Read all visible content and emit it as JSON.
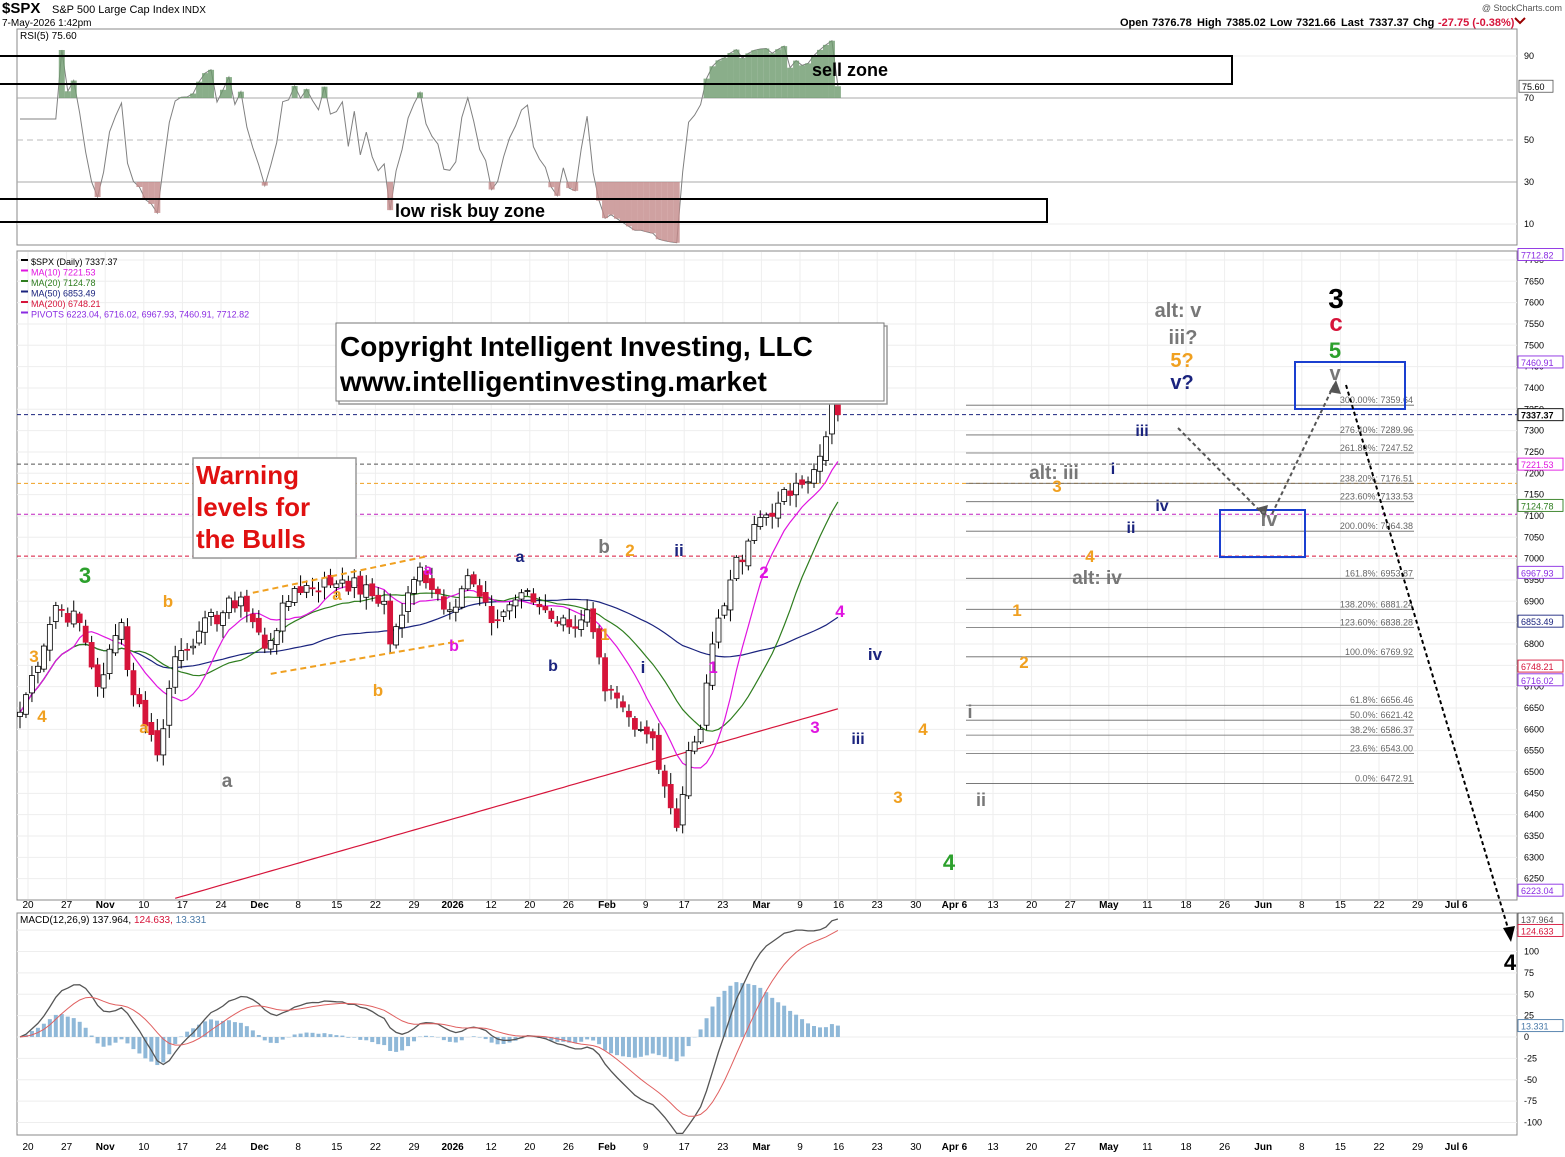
{
  "header": {
    "symbol": "$SPX",
    "name": "S&P 500 Large Cap Index",
    "exchange": "INDX",
    "date_time": "7-May-2026 1:42pm",
    "watermark": "@ StockCharts.com",
    "ohlc": {
      "open_label": "Open",
      "open": "7376.78",
      "high_label": "High",
      "high": "7385.02",
      "low_label": "Low",
      "low": "7321.66",
      "last_label": "Last",
      "last": "7337.37",
      "chg_label": "Chg",
      "chg": "-27.75 (-0.38%)"
    }
  },
  "colors": {
    "up": "#ffffff",
    "down": "#d6143a",
    "ma10": "#e014e0",
    "ma20": "#2e7d1e",
    "ma50": "#1a237e",
    "ma200": "#d6143a",
    "rsi": "#808080",
    "macd_line": "#555555",
    "macd_signal": "#e06060",
    "histogram": "#8fb8d8",
    "fill_green": "#6e9a6e",
    "fill_red": "#c48a8a"
  },
  "rsi_panel": {
    "legend": "RSI(5) 75.60",
    "current": "75.60",
    "axis_ticks": [
      "90",
      "70",
      "50",
      "30",
      "10"
    ],
    "sell_zone_label": "sell zone",
    "buy_zone_label": "low risk buy zone"
  },
  "price_panel": {
    "legend": [
      {
        "text": "$SPX (Daily) 7337.37",
        "color": "#000000"
      },
      {
        "text": "MA(10) 7221.53",
        "color": "#e014e0"
      },
      {
        "text": "MA(20) 7124.78",
        "color": "#2e7d1e"
      },
      {
        "text": "MA(50) 6853.49",
        "color": "#1a237e"
      },
      {
        "text": "MA(200) 6748.21",
        "color": "#d6143a"
      },
      {
        "text": "PIVOTS 6223.04, 6716.02, 6967.93, 7460.91, 7712.82",
        "color": "#8a2be2"
      }
    ],
    "copyright_line1": "Copyright Intelligent Investing, LLC",
    "copyright_line2": "www.intelligentinvesting.market",
    "warning_text": [
      "Warning",
      "levels for",
      "the Bulls"
    ],
    "axis_ticks": [
      "7700",
      "7650",
      "7600",
      "7550",
      "7500",
      "7450",
      "7400",
      "7350",
      "7300",
      "7250",
      "7200",
      "7150",
      "7100",
      "7050",
      "7000",
      "6950",
      "6900",
      "6850",
      "6800",
      "6750",
      "6700",
      "6650",
      "6600",
      "6550",
      "6500",
      "6450",
      "6400",
      "6350",
      "6300",
      "6250"
    ],
    "axis_badges": [
      {
        "text": "7712.82",
        "value": 7712.82,
        "color": "#8a2be2"
      },
      {
        "text": "7460.91",
        "value": 7460.91,
        "color": "#8a2be2"
      },
      {
        "text": "7337.37",
        "value": 7337.37,
        "color": "#000000",
        "bold": true
      },
      {
        "text": "7221.53",
        "value": 7221.53,
        "color": "#e014e0"
      },
      {
        "text": "7124.78",
        "value": 7124.78,
        "color": "#2e7d1e"
      },
      {
        "text": "6967.93",
        "value": 6967.93,
        "color": "#8a2be2"
      },
      {
        "text": "6853.49",
        "value": 6853.49,
        "color": "#1a237e"
      },
      {
        "text": "6748.21",
        "value": 6748.21,
        "color": "#d6143a"
      },
      {
        "text": "6716.02",
        "value": 6716.02,
        "color": "#8a2be2"
      },
      {
        "text": "6223.04",
        "value": 6223.04,
        "color": "#8a2be2"
      }
    ],
    "fib_levels": [
      {
        "label": "300.00%: 7359.64",
        "value": 7359.64
      },
      {
        "label": "276.40%: 7289.96",
        "value": 7289.96
      },
      {
        "label": "261.80%: 7247.52",
        "value": 7247.52
      },
      {
        "label": "238.20%: 7176.51",
        "value": 7176.51
      },
      {
        "label": "223.60%: 7133.53",
        "value": 7133.53
      },
      {
        "label": "200.00%: 7064.38",
        "value": 7064.38
      },
      {
        "label": "161.8%: 6953.87",
        "value": 6953.87
      },
      {
        "label": "138.20%: 6881.24",
        "value": 6881.24
      },
      {
        "label": "123.60%: 6838.28",
        "value": 6838.28
      },
      {
        "label": "100.0%: 6769.92",
        "value": 6769.92
      },
      {
        "label": "61.8%: 6656.46",
        "value": 6656.46
      },
      {
        "label": "50.0%: 6621.42",
        "value": 6621.42
      },
      {
        "label": "38.2%: 6586.37",
        "value": 6586.37
      },
      {
        "label": "23.6%: 6543.00",
        "value": 6543.0
      },
      {
        "label": "0.0%: 6472.91",
        "value": 6472.91
      }
    ],
    "warning_lines": [
      {
        "value": 7337.37,
        "color": "#1a237e"
      },
      {
        "value": 7221.53,
        "color": "#555555"
      },
      {
        "value": 7176.51,
        "color": "#f0a020"
      },
      {
        "value": 7104,
        "color": "#c020c0"
      },
      {
        "value": 7006,
        "color": "#d6143a"
      }
    ],
    "wave_labels": [
      {
        "t": "3",
        "x": 85,
        "y": 583,
        "c": "#2ca02c",
        "s": 22
      },
      {
        "t": "3",
        "x": 34,
        "y": 662,
        "c": "#f0a020",
        "s": 17
      },
      {
        "t": "4",
        "x": 42,
        "y": 722,
        "c": "#f0a020",
        "s": 17
      },
      {
        "t": "b",
        "x": 168,
        "y": 607,
        "c": "#f0a020",
        "s": 17
      },
      {
        "t": "a",
        "x": 144,
        "y": 733,
        "c": "#f0a020",
        "s": 17
      },
      {
        "t": "a",
        "x": 227,
        "y": 787,
        "c": "#777777",
        "s": 19
      },
      {
        "t": "a",
        "x": 337,
        "y": 600,
        "c": "#f0a020",
        "s": 17
      },
      {
        "t": "b",
        "x": 378,
        "y": 696,
        "c": "#f0a020",
        "s": 17
      },
      {
        "t": "a",
        "x": 428,
        "y": 575,
        "c": "#e014e0",
        "s": 16
      },
      {
        "t": "b",
        "x": 454,
        "y": 651,
        "c": "#e014e0",
        "s": 16
      },
      {
        "t": "a",
        "x": 520,
        "y": 562,
        "c": "#1a237e",
        "s": 16
      },
      {
        "t": "b",
        "x": 553,
        "y": 671,
        "c": "#1a237e",
        "s": 16
      },
      {
        "t": "b",
        "x": 604,
        "y": 553,
        "c": "#777777",
        "s": 19
      },
      {
        "t": "2",
        "x": 630,
        "y": 556,
        "c": "#f0a020",
        "s": 17
      },
      {
        "t": "1",
        "x": 605,
        "y": 640,
        "c": "#f0a020",
        "s": 17
      },
      {
        "t": "ii",
        "x": 679,
        "y": 556,
        "c": "#1a237e",
        "s": 17
      },
      {
        "t": "i",
        "x": 643,
        "y": 673,
        "c": "#1a237e",
        "s": 17
      },
      {
        "t": "2",
        "x": 764,
        "y": 578,
        "c": "#e014e0",
        "s": 17
      },
      {
        "t": "1",
        "x": 713,
        "y": 673,
        "c": "#e014e0",
        "s": 17
      },
      {
        "t": "4",
        "x": 840,
        "y": 617,
        "c": "#e014e0",
        "s": 17
      },
      {
        "t": "iv",
        "x": 875,
        "y": 660,
        "c": "#1a237e",
        "s": 17
      },
      {
        "t": "3",
        "x": 815,
        "y": 733,
        "c": "#e014e0",
        "s": 17
      },
      {
        "t": "iii",
        "x": 858,
        "y": 744,
        "c": "#1a237e",
        "s": 16
      },
      {
        "t": "4",
        "x": 923,
        "y": 735,
        "c": "#f0a020",
        "s": 17
      },
      {
        "t": "3",
        "x": 898,
        "y": 803,
        "c": "#f0a020",
        "s": 17
      },
      {
        "t": "4",
        "x": 949,
        "y": 870,
        "c": "#2ca02c",
        "s": 22
      },
      {
        "t": "i",
        "x": 970,
        "y": 718,
        "c": "#777777",
        "s": 18
      },
      {
        "t": "ii",
        "x": 981,
        "y": 806,
        "c": "#777777",
        "s": 18
      },
      {
        "t": "1",
        "x": 1017,
        "y": 616,
        "c": "#f0a020",
        "s": 17
      },
      {
        "t": "2",
        "x": 1024,
        "y": 668,
        "c": "#f0a020",
        "s": 17
      },
      {
        "t": "3",
        "x": 1057,
        "y": 492,
        "c": "#f0a020",
        "s": 17
      },
      {
        "t": "4",
        "x": 1090,
        "y": 562,
        "c": "#f0a020",
        "s": 17
      },
      {
        "t": "alt: iii",
        "x": 1054,
        "y": 479,
        "c": "#777777",
        "s": 19
      },
      {
        "t": "alt: iv",
        "x": 1097,
        "y": 584,
        "c": "#777777",
        "s": 19
      },
      {
        "t": "i",
        "x": 1113,
        "y": 474,
        "c": "#1a237e",
        "s": 16
      },
      {
        "t": "ii",
        "x": 1131,
        "y": 533,
        "c": "#1a237e",
        "s": 16
      },
      {
        "t": "iii",
        "x": 1142,
        "y": 436,
        "c": "#1a237e",
        "s": 16
      },
      {
        "t": "iv",
        "x": 1162,
        "y": 511,
        "c": "#1a237e",
        "s": 16
      },
      {
        "t": "alt: v",
        "x": 1178,
        "y": 317,
        "c": "#777777",
        "s": 20
      },
      {
        "t": "iii?",
        "x": 1183,
        "y": 344,
        "c": "#777777",
        "s": 20
      },
      {
        "t": "5?",
        "x": 1182,
        "y": 367,
        "c": "#f0a020",
        "s": 20
      },
      {
        "t": "v?",
        "x": 1182,
        "y": 389,
        "c": "#1a237e",
        "s": 20
      },
      {
        "t": "3",
        "x": 1336,
        "y": 308,
        "c": "#000000",
        "s": 28
      },
      {
        "t": "c",
        "x": 1336,
        "y": 331,
        "c": "#d6143a",
        "s": 24
      },
      {
        "t": "5",
        "x": 1335,
        "y": 358,
        "c": "#2ca02c",
        "s": 22
      },
      {
        "t": "v",
        "x": 1335,
        "y": 380,
        "c": "#777777",
        "s": 20
      },
      {
        "t": "iv",
        "x": 1269,
        "y": 526,
        "c": "#777777",
        "s": 20
      },
      {
        "t": "4",
        "x": 1510,
        "y": 970,
        "c": "#000000",
        "s": 22
      }
    ]
  },
  "macd_panel": {
    "legend_parts": [
      {
        "text": "MACD(12,26,9) 137.964,",
        "color": "#000000"
      },
      {
        "text": " 124.633,",
        "color": "#d6143a"
      },
      {
        "text": " 13.331",
        "color": "#4a7aa8"
      }
    ],
    "axis_ticks": [
      "125",
      "100",
      "75",
      "50",
      "25",
      "0",
      "-25",
      "-50",
      "-75",
      "-100"
    ],
    "axis_badges": [
      {
        "text": "137.964",
        "value": 137.964,
        "color": "#555555"
      },
      {
        "text": "124.633",
        "value": 124.633,
        "color": "#d6143a"
      },
      {
        "text": "13.331",
        "value": 13.331,
        "color": "#4a7aa8"
      }
    ]
  },
  "x_axis": {
    "ticks": [
      "20",
      "27",
      "Nov",
      "10",
      "17",
      "24",
      "Dec",
      "8",
      "15",
      "22",
      "29",
      "2026",
      "12",
      "20",
      "26",
      "Feb",
      "9",
      "17",
      "23",
      "Mar",
      "9",
      "16",
      "23",
      "30",
      "Apr 6",
      "13",
      "20",
      "27",
      "May",
      "11",
      "18",
      "26",
      "Jun",
      "8",
      "15",
      "22",
      "29",
      "Jul 6"
    ],
    "bold_ticks": [
      "Nov",
      "Dec",
      "2026",
      "Feb",
      "Mar",
      "Apr 6",
      "May",
      "Jun",
      "Jul 6"
    ]
  },
  "chart_data": {
    "type": "candlestick",
    "title": "$SPX S&P 500 Large Cap Index INDX",
    "subtitle": "7-May-2026 1:42pm",
    "x_range": [
      "2025-10-20",
      "2026-07-06"
    ],
    "price_ylim": [
      6200,
      7720
    ],
    "rsi_ylim": [
      0,
      100
    ],
    "macd_ylim": [
      -110,
      140
    ],
    "series_ohlc_anchor_closes": [
      [
        "2025-10-20",
        6640
      ],
      [
        "2025-10-28",
        6890
      ],
      [
        "2025-11-03",
        6850
      ],
      [
        "2025-11-06",
        6700
      ],
      [
        "2025-11-12",
        6850
      ],
      [
        "2025-11-13",
        6740
      ],
      [
        "2025-11-20",
        6540
      ],
      [
        "2025-11-25",
        6770
      ],
      [
        "2025-12-02",
        6830
      ],
      [
        "2025-12-11",
        6910
      ],
      [
        "2025-12-17",
        6790
      ],
      [
        "2025-12-24",
        6930
      ],
      [
        "2026-01-07",
        6950
      ],
      [
        "2026-01-16",
        6900
      ],
      [
        "2026-01-20",
        6800
      ],
      [
        "2026-01-27",
        6980
      ],
      [
        "2026-02-03",
        6880
      ],
      [
        "2026-02-06",
        6960
      ],
      [
        "2026-02-12",
        6850
      ],
      [
        "2026-02-20",
        6920
      ],
      [
        "2026-02-26",
        6880
      ],
      [
        "2026-03-04",
        6840
      ],
      [
        "2026-03-09",
        6880
      ],
      [
        "2026-03-12",
        6690
      ],
      [
        "2026-03-19",
        6600
      ],
      [
        "2026-03-24",
        6580
      ],
      [
        "2026-03-30",
        6370
      ],
      [
        "2026-04-01",
        6550
      ],
      [
        "2026-04-06",
        6600
      ],
      [
        "2026-04-08",
        6800
      ],
      [
        "2026-04-13",
        6950
      ],
      [
        "2026-04-17",
        7080
      ],
      [
        "2026-04-23",
        7130
      ],
      [
        "2026-04-30",
        7180
      ],
      [
        "2026-05-04",
        7240
      ],
      [
        "2026-05-06",
        7365
      ],
      [
        "2026-05-07",
        7337.37
      ]
    ],
    "ma10_last": 7221.53,
    "ma20_last": 7124.78,
    "ma50_last": 6853.49,
    "ma200_last": 6748.21,
    "pivots": [
      6223.04,
      6716.02,
      6967.93,
      7460.91,
      7712.82
    ],
    "rsi_last": 75.6,
    "macd_last": {
      "macd": 137.964,
      "signal": 124.633,
      "histogram": 13.331
    },
    "projection": {
      "wave_iv_target": [
        7050,
        7150
      ],
      "wave_v_target": [
        7350,
        7450
      ],
      "wave_4_down": "4"
    }
  }
}
